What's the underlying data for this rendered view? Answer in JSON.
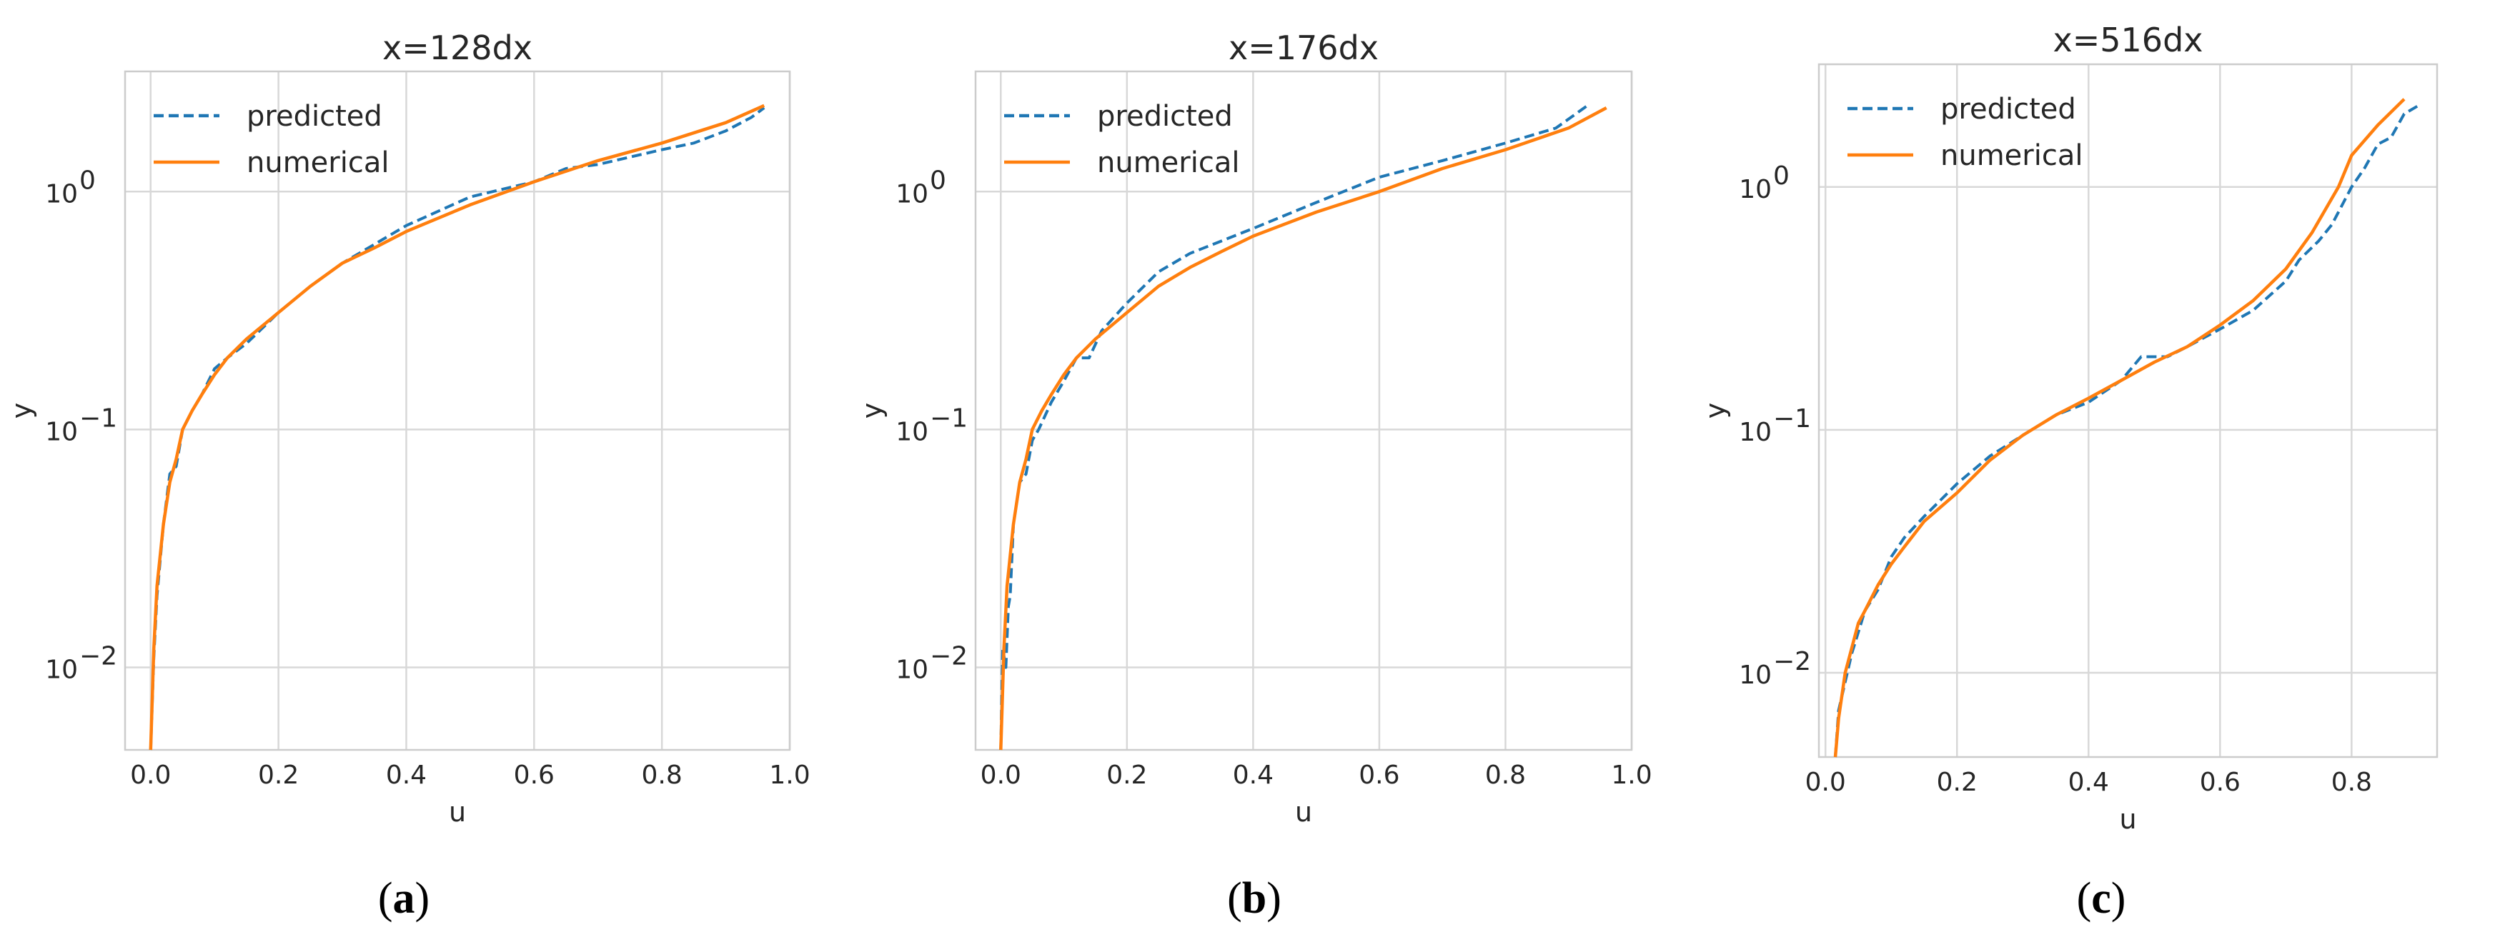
{
  "colors": {
    "predicted": "#1f77b4",
    "numerical": "#ff7f0e"
  },
  "chart_data": [
    {
      "type": "line",
      "title": "x=128dx",
      "xlabel": "u",
      "ylabel": "y",
      "yscale": "log",
      "xlim": [
        -0.04,
        1.0
      ],
      "ylim": [
        0.0045,
        3.2
      ],
      "xticks": [
        0.0,
        0.2,
        0.4,
        0.6,
        0.8,
        1.0
      ],
      "xtick_labels": [
        "0.0",
        "0.2",
        "0.4",
        "0.6",
        "0.8",
        "1.0"
      ],
      "yticks": [
        0.01,
        0.1,
        1
      ],
      "ytick_labels": [
        {
          "base": "10",
          "exp": "−2"
        },
        {
          "base": "10",
          "exp": "−1"
        },
        {
          "base": "10",
          "exp": "0"
        }
      ],
      "legend": "top-left",
      "caption": {
        "open": "(",
        "letter": "a",
        "close": ")"
      },
      "series": [
        {
          "name": "predicted",
          "style": "dashed",
          "x": [
            0.0,
            0.005,
            0.01,
            0.02,
            0.03,
            0.04,
            0.05,
            0.065,
            0.08,
            0.1,
            0.12,
            0.15,
            0.2,
            0.25,
            0.3,
            0.35,
            0.4,
            0.5,
            0.6,
            0.65,
            0.7,
            0.8,
            0.85,
            0.9,
            0.94,
            0.96
          ],
          "y": [
            0.0045,
            0.011,
            0.02,
            0.04,
            0.065,
            0.07,
            0.1,
            0.12,
            0.14,
            0.18,
            0.2,
            0.23,
            0.31,
            0.4,
            0.5,
            0.6,
            0.72,
            0.95,
            1.1,
            1.25,
            1.3,
            1.5,
            1.6,
            1.8,
            2.05,
            2.25
          ]
        },
        {
          "name": "numerical",
          "style": "solid",
          "x": [
            0.0,
            0.005,
            0.01,
            0.02,
            0.03,
            0.04,
            0.05,
            0.065,
            0.08,
            0.1,
            0.12,
            0.15,
            0.2,
            0.25,
            0.3,
            0.35,
            0.4,
            0.5,
            0.6,
            0.7,
            0.8,
            0.9,
            0.96
          ],
          "y": [
            0.0045,
            0.012,
            0.022,
            0.04,
            0.06,
            0.075,
            0.1,
            0.12,
            0.14,
            0.17,
            0.2,
            0.24,
            0.31,
            0.4,
            0.5,
            0.58,
            0.68,
            0.88,
            1.1,
            1.35,
            1.6,
            1.95,
            2.3
          ]
        }
      ]
    },
    {
      "type": "line",
      "title": "x=176dx",
      "xlabel": "u",
      "ylabel": "y",
      "yscale": "log",
      "xlim": [
        -0.04,
        1.0
      ],
      "ylim": [
        0.0045,
        3.2
      ],
      "xticks": [
        0.0,
        0.2,
        0.4,
        0.6,
        0.8,
        1.0
      ],
      "xtick_labels": [
        "0.0",
        "0.2",
        "0.4",
        "0.6",
        "0.8",
        "1.0"
      ],
      "yticks": [
        0.01,
        0.1,
        1
      ],
      "ytick_labels": [
        {
          "base": "10",
          "exp": "−2"
        },
        {
          "base": "10",
          "exp": "−1"
        },
        {
          "base": "10",
          "exp": "0"
        }
      ],
      "legend": "top-left",
      "caption": {
        "open": "(",
        "letter": "b",
        "close": ")"
      },
      "series": [
        {
          "name": "predicted",
          "style": "dashed",
          "x": [
            0.0,
            0.003,
            0.008,
            0.012,
            0.015,
            0.02,
            0.03,
            0.04,
            0.05,
            0.06,
            0.08,
            0.1,
            0.12,
            0.14,
            0.16,
            0.2,
            0.25,
            0.3,
            0.4,
            0.5,
            0.6,
            0.7,
            0.8,
            0.88,
            0.93
          ],
          "y": [
            0.0045,
            0.012,
            0.01,
            0.018,
            0.02,
            0.04,
            0.06,
            0.065,
            0.09,
            0.1,
            0.13,
            0.16,
            0.2,
            0.2,
            0.26,
            0.34,
            0.46,
            0.55,
            0.7,
            0.9,
            1.15,
            1.35,
            1.6,
            1.85,
            2.3
          ]
        },
        {
          "name": "numerical",
          "style": "solid",
          "x": [
            0.0,
            0.005,
            0.01,
            0.02,
            0.03,
            0.04,
            0.05,
            0.065,
            0.08,
            0.1,
            0.12,
            0.15,
            0.2,
            0.25,
            0.3,
            0.35,
            0.4,
            0.5,
            0.6,
            0.7,
            0.8,
            0.9,
            0.96
          ],
          "y": [
            0.0045,
            0.012,
            0.022,
            0.04,
            0.06,
            0.075,
            0.1,
            0.12,
            0.14,
            0.17,
            0.2,
            0.24,
            0.31,
            0.4,
            0.48,
            0.56,
            0.65,
            0.82,
            1.0,
            1.25,
            1.5,
            1.85,
            2.25
          ]
        }
      ]
    },
    {
      "type": "line",
      "title": "x=516dx",
      "xlabel": "u",
      "ylabel": "y",
      "yscale": "log",
      "xlim": [
        -0.01,
        0.93
      ],
      "ylim": [
        0.0045,
        3.2
      ],
      "xticks": [
        0.0,
        0.2,
        0.4,
        0.6,
        0.8
      ],
      "xtick_labels": [
        "0.0",
        "0.2",
        "0.4",
        "0.6",
        "0.8"
      ],
      "yticks": [
        0.01,
        0.1,
        1
      ],
      "ytick_labels": [
        {
          "base": "10",
          "exp": "−2"
        },
        {
          "base": "10",
          "exp": "−1"
        },
        {
          "base": "10",
          "exp": "0"
        }
      ],
      "legend": "top-left",
      "caption": {
        "open": "(",
        "letter": "c",
        "close": ")"
      },
      "series": [
        {
          "name": "predicted",
          "style": "dashed",
          "x": [
            0.015,
            0.02,
            0.04,
            0.06,
            0.08,
            0.1,
            0.12,
            0.15,
            0.2,
            0.25,
            0.3,
            0.35,
            0.4,
            0.45,
            0.48,
            0.52,
            0.55,
            0.6,
            0.65,
            0.7,
            0.72,
            0.75,
            0.77,
            0.8,
            0.82,
            0.84,
            0.86,
            0.88,
            0.9
          ],
          "y": [
            0.0045,
            0.007,
            0.012,
            0.018,
            0.022,
            0.03,
            0.036,
            0.044,
            0.06,
            0.078,
            0.095,
            0.115,
            0.13,
            0.16,
            0.2,
            0.2,
            0.22,
            0.26,
            0.31,
            0.41,
            0.5,
            0.6,
            0.7,
            1.0,
            1.2,
            1.5,
            1.6,
            2.0,
            2.15
          ]
        },
        {
          "name": "numerical",
          "style": "solid",
          "x": [
            0.015,
            0.02,
            0.03,
            0.05,
            0.06,
            0.08,
            0.1,
            0.12,
            0.15,
            0.2,
            0.25,
            0.3,
            0.35,
            0.4,
            0.45,
            0.5,
            0.55,
            0.6,
            0.65,
            0.7,
            0.74,
            0.78,
            0.8,
            0.84,
            0.88
          ],
          "y": [
            0.0045,
            0.0065,
            0.01,
            0.016,
            0.018,
            0.023,
            0.028,
            0.033,
            0.042,
            0.055,
            0.075,
            0.095,
            0.115,
            0.135,
            0.16,
            0.19,
            0.22,
            0.27,
            0.34,
            0.46,
            0.65,
            1.0,
            1.35,
            1.8,
            2.3
          ]
        }
      ]
    }
  ]
}
